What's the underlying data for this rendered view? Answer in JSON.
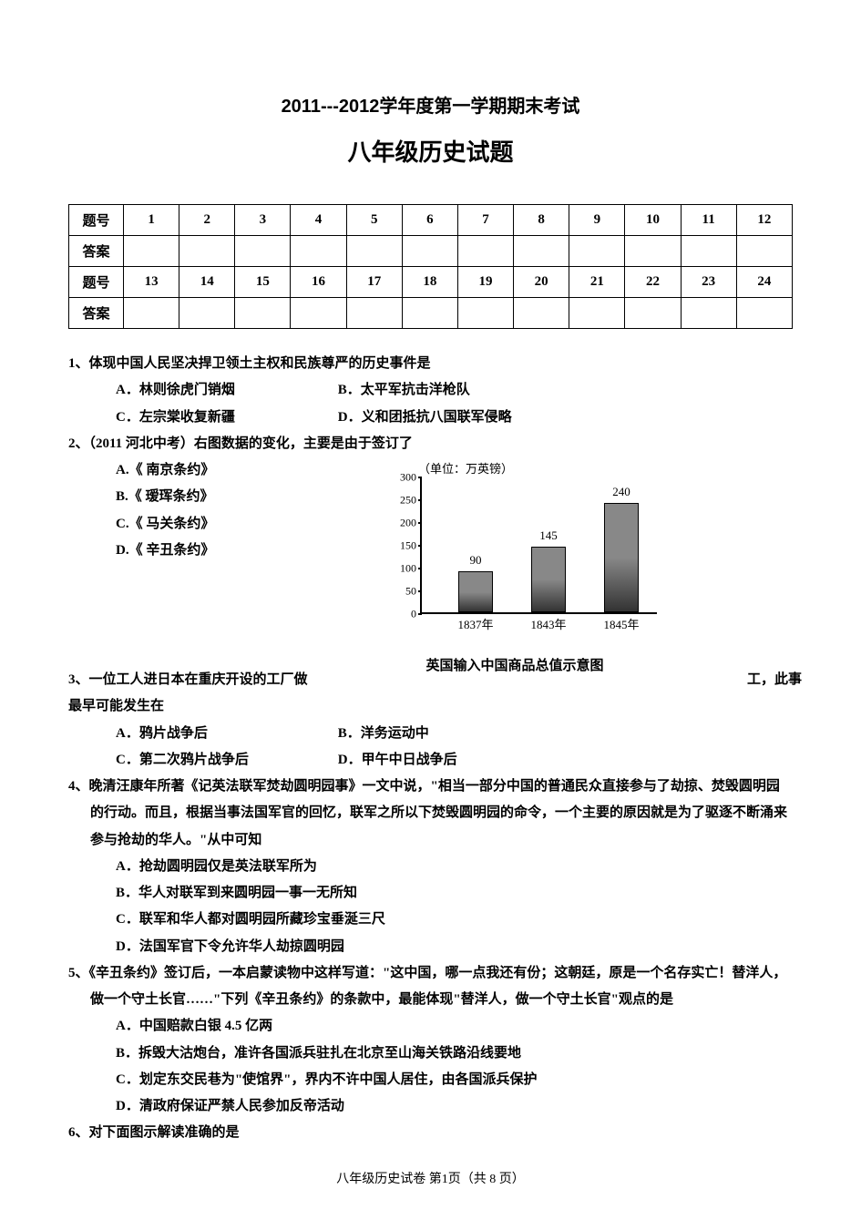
{
  "header": {
    "line1": "2011---2012学年度第一学期期末考试",
    "line2": "八年级历史试题"
  },
  "grid": {
    "row1_label": "题号",
    "row2_label": "答案",
    "row3_label": "题号",
    "row4_label": "答案",
    "nums_top": [
      "1",
      "2",
      "3",
      "4",
      "5",
      "6",
      "7",
      "8",
      "9",
      "10",
      "11",
      "12"
    ],
    "nums_bot": [
      "13",
      "14",
      "15",
      "16",
      "17",
      "18",
      "19",
      "20",
      "21",
      "22",
      "23",
      "24"
    ]
  },
  "q1": {
    "stem": "1、体现中国人民坚决捍卫领土主权和民族尊严的历史事件是",
    "A": "A．林则徐虎门销烟",
    "B": "B．太平军抗击洋枪队",
    "C": "C．左宗棠收复新疆",
    "D": "D．义和团抵抗八国联军侵略"
  },
  "q2": {
    "stem": "2、（2011 河北中考）右图数据的变化，主要是由于签订了",
    "A": "A.《 南京条约》",
    "B": "B.《 瑷珲条约》",
    "C": "C.《 马关条约》",
    "D": "D.《 辛丑条约》"
  },
  "chart": {
    "unit": "（单位：万英镑）",
    "ymax": 300,
    "ytick_step": 50,
    "yticks": [
      "0",
      "50",
      "100",
      "150",
      "200",
      "250",
      "300"
    ],
    "categories": [
      "1837年",
      "1843年",
      "1845年"
    ],
    "values": [
      90,
      145,
      240
    ],
    "value_labels": [
      "90",
      "145",
      "240"
    ],
    "bar_color": "#888888",
    "title": "英国输入中国商品总值示意图"
  },
  "q3": {
    "part1": "3、一位工人进日本在重庆开设的工厂做",
    "tail": "工，此事",
    "part2": "最早可能发生在",
    "A": "A．鸦片战争后",
    "B": "B．洋务运动中",
    "C": "C．第二次鸦片战争后",
    "D": "D．甲午中日战争后"
  },
  "q4": {
    "stem": "4、晚清汪康年所著《记英法联军焚劫圆明园事》一文中说，\"相当一部分中国的普通民众直接参与了劫掠、焚毁圆明园的行动。而且，根据当事法国军官的回忆，联军之所以下焚毁圆明园的命令，一个主要的原因就是为了驱逐不断涌来参与抢劫的华人。\"从中可知",
    "A": "A．抢劫圆明园仅是英法联军所为",
    "B": "B．华人对联军到来圆明园一事一无所知",
    "C": "C．联军和华人都对圆明园所藏珍宝垂涎三尺",
    "D": "D．法国军官下令允许华人劫掠圆明园"
  },
  "q5": {
    "stem": "5、《辛丑条约》签订后，一本启蒙读物中这样写道：\"这中国，哪一点我还有份；这朝廷，原是一个名存实亡！替洋人，做一个守土长官……\"下列《辛丑条约》的条款中，最能体现\"替洋人，做一个守土长官\"观点的是",
    "A": "A．中国赔款白银 4.5 亿两",
    "B": "B．拆毁大沽炮台，准许各国派兵驻扎在北京至山海关铁路沿线要地",
    "C": "C．划定东交民巷为\"使馆界\"，界内不许中国人居住，由各国派兵保护",
    "D": "D．清政府保证严禁人民参加反帝活动"
  },
  "q6": {
    "stem": "6、对下面图示解读准确的是"
  },
  "footer": {
    "text_prefix": "八年级历史试卷  第",
    "page": "1",
    "text_mid": "页（共 ",
    "total": "8",
    "text_suffix": " 页）"
  }
}
